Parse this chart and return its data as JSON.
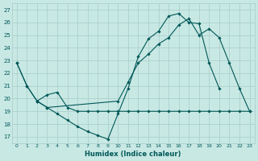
{
  "xlabel": "Humidex (Indice chaleur)",
  "xlim": [
    -0.5,
    23.5
  ],
  "ylim": [
    16.5,
    27.5
  ],
  "yticks": [
    17,
    18,
    19,
    20,
    21,
    22,
    23,
    24,
    25,
    26,
    27
  ],
  "xticks": [
    0,
    1,
    2,
    3,
    4,
    5,
    6,
    7,
    8,
    9,
    10,
    11,
    12,
    13,
    14,
    15,
    16,
    17,
    18,
    19,
    20,
    21,
    22,
    23
  ],
  "bg_color": "#c8e8e4",
  "grid_color": "#a8ccc8",
  "line_color": "#005858",
  "series": [
    {
      "x": [
        0,
        1,
        2,
        3,
        4,
        5,
        6,
        7,
        8,
        9,
        10,
        11,
        12,
        13,
        14,
        15,
        16,
        17,
        18,
        19,
        20,
        21,
        22,
        23
      ],
      "y": [
        22.8,
        21.0,
        19.8,
        20.3,
        20.5,
        19.3,
        19.0,
        19.0,
        19.0,
        19.0,
        19.0,
        19.0,
        19.0,
        19.0,
        19.0,
        19.0,
        19.0,
        19.0,
        19.0,
        19.0,
        19.0,
        19.0,
        19.0,
        19.0
      ]
    },
    {
      "x": [
        0,
        1,
        2,
        3,
        4,
        5,
        6,
        7,
        8,
        9,
        10,
        11,
        12,
        13,
        14,
        15,
        16,
        17,
        18,
        19,
        20
      ],
      "y": [
        22.8,
        21.0,
        19.8,
        19.3,
        18.8,
        18.3,
        17.8,
        17.4,
        17.1,
        16.8,
        18.8,
        20.8,
        23.3,
        24.7,
        25.3,
        26.5,
        26.7,
        26.0,
        25.9,
        22.8,
        20.8
      ]
    },
    {
      "x": [
        2,
        3,
        10,
        11,
        12,
        13,
        14,
        15,
        16,
        17,
        18,
        19,
        20,
        21,
        22,
        23
      ],
      "y": [
        19.8,
        19.3,
        19.8,
        21.3,
        22.8,
        23.5,
        24.3,
        24.8,
        25.8,
        26.3,
        25.0,
        25.5,
        24.8,
        22.8,
        20.8,
        19.0
      ]
    }
  ]
}
